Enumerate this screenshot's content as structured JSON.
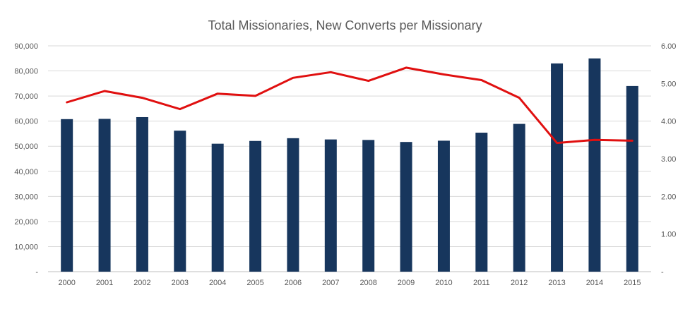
{
  "chart_data": {
    "type": "bar",
    "title": "Total Missionaries, New Converts per Missionary",
    "categories": [
      "2000",
      "2001",
      "2002",
      "2003",
      "2004",
      "2005",
      "2006",
      "2007",
      "2008",
      "2009",
      "2010",
      "2011",
      "2012",
      "2013",
      "2014",
      "2015"
    ],
    "series": [
      {
        "type": "bar",
        "axis": "left",
        "color": "#17365d",
        "values": [
          60800,
          60900,
          61600,
          56200,
          51000,
          52100,
          53200,
          52700,
          52500,
          51700,
          52200,
          55400,
          58900,
          83000,
          85000,
          74000
        ]
      },
      {
        "type": "line",
        "axis": "right",
        "color": "#e01010",
        "values": [
          4.5,
          4.8,
          4.62,
          4.32,
          4.73,
          4.67,
          5.15,
          5.3,
          5.07,
          5.42,
          5.24,
          5.09,
          4.62,
          3.42,
          3.5,
          3.48
        ]
      }
    ],
    "y_left": {
      "range": [
        0,
        90000
      ],
      "ticks": [
        "-",
        "10,000",
        "20,000",
        "30,000",
        "40,000",
        "50,000",
        "60,000",
        "70,000",
        "80,000",
        "90,000"
      ]
    },
    "y_right": {
      "range": [
        0,
        6
      ],
      "ticks": [
        "-",
        "1.00",
        "2.00",
        "3.00",
        "4.00",
        "5.00",
        "6.00"
      ]
    },
    "grid": true,
    "legend": "none"
  }
}
